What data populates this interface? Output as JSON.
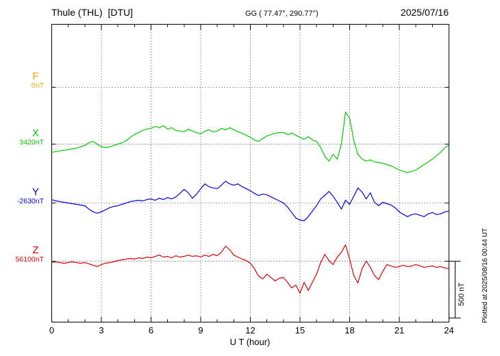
{
  "header": {
    "title": "Thule (THL)  [DTU]",
    "coords": "GG ( 77.47°, 290.77°)",
    "date": "2025/07/16"
  },
  "axis": {
    "xlabel": "U T (hour)",
    "x_ticks": [
      0,
      3,
      6,
      9,
      12,
      15,
      18,
      21,
      24
    ],
    "x_minor_step": 1,
    "x_range": [
      0,
      24
    ]
  },
  "scale_bar": {
    "label": "500 nT",
    "nT": 500
  },
  "right_note": "Plotted at 2025/08/16 00:44 UT",
  "colors": {
    "frame": "#000000",
    "grid": "#444444",
    "background": "#ffffff"
  },
  "chart_data": {
    "type": "line",
    "title": "Thule (THL) [DTU] magnetogram 2025/07/16",
    "xlabel": "U T (hour)",
    "x_range": [
      0,
      24
    ],
    "x_step_hours": 0.25,
    "scale_nT_per_div": 500,
    "grid": "dotted",
    "series": [
      {
        "name": "F",
        "label": "F",
        "baseline_label": "0nT",
        "baseline_nT": 0,
        "color": "#FFA500",
        "values": []
      },
      {
        "name": "X",
        "label": "X",
        "baseline_label": "3420nT",
        "baseline_nT": 3420,
        "color": "#00CC00",
        "values": [
          -72,
          -66,
          -60,
          -54,
          -48,
          -42,
          -36,
          -24,
          -12,
          12,
          24,
          0,
          -24,
          -30,
          -24,
          -12,
          0,
          12,
          30,
          60,
          84,
          102,
          120,
          132,
          138,
          156,
          144,
          162,
          132,
          144,
          120,
          114,
          108,
          132,
          114,
          102,
          90,
          114,
          126,
          108,
          114,
          138,
          126,
          144,
          126,
          108,
          96,
          78,
          60,
          36,
          24,
          48,
          72,
          84,
          96,
          102,
          102,
          84,
          96,
          78,
          60,
          42,
          66,
          36,
          24,
          -30,
          -108,
          -150,
          -90,
          -132,
          0,
          282,
          228,
          30,
          -90,
          -132,
          -150,
          -138,
          -156,
          -162,
          -168,
          -180,
          -192,
          -210,
          -228,
          -240,
          -252,
          -240,
          -228,
          -204,
          -180,
          -156,
          -132,
          -102,
          -72,
          -30,
          -12
        ]
      },
      {
        "name": "Y",
        "label": "Y",
        "baseline_label": "-2630nT",
        "baseline_nT": -2630,
        "color": "#0000DD",
        "values": [
          30,
          18,
          12,
          6,
          0,
          -6,
          -12,
          -18,
          -24,
          -54,
          -78,
          -90,
          -78,
          -60,
          -42,
          -30,
          -24,
          -12,
          0,
          12,
          18,
          24,
          18,
          30,
          36,
          24,
          42,
          30,
          48,
          36,
          54,
          84,
          120,
          90,
          42,
          78,
          126,
          168,
          144,
          132,
          126,
          156,
          192,
          168,
          156,
          168,
          144,
          126,
          108,
          84,
          66,
          78,
          72,
          54,
          36,
          18,
          0,
          -36,
          -84,
          -132,
          -150,
          -156,
          -120,
          -72,
          -24,
          36,
          66,
          102,
          60,
          6,
          -54,
          24,
          -12,
          60,
          132,
          96,
          36,
          90,
          6,
          -24,
          6,
          -6,
          -18,
          -42,
          -78,
          -102,
          -120,
          -102,
          -96,
          -108,
          -120,
          -96,
          -84,
          -102,
          -96,
          -78,
          -72
        ]
      },
      {
        "name": "Z",
        "label": "Z",
        "baseline_label": "56100nT",
        "baseline_nT": 56100,
        "color": "#DD0000",
        "values": [
          -12,
          -6,
          -12,
          -18,
          -12,
          -6,
          -12,
          -18,
          -12,
          -24,
          -36,
          -48,
          -30,
          -18,
          -12,
          -6,
          6,
          12,
          18,
          24,
          18,
          30,
          24,
          36,
          30,
          42,
          54,
          36,
          42,
          30,
          48,
          36,
          42,
          54,
          42,
          48,
          36,
          54,
          42,
          60,
          48,
          78,
          132,
          102,
          54,
          36,
          18,
          6,
          -18,
          -66,
          -132,
          -156,
          -114,
          -144,
          -174,
          -150,
          -144,
          -186,
          -234,
          -210,
          -282,
          -186,
          -258,
          -186,
          -114,
          -12,
          60,
          6,
          -30,
          36,
          78,
          144,
          18,
          -126,
          -192,
          -66,
          0,
          -54,
          -126,
          -162,
          -90,
          -30,
          -42,
          -54,
          -48,
          -36,
          -48,
          -42,
          -30,
          -42,
          -54,
          -48,
          -42,
          -54,
          -48,
          -60,
          -66
        ]
      }
    ]
  }
}
